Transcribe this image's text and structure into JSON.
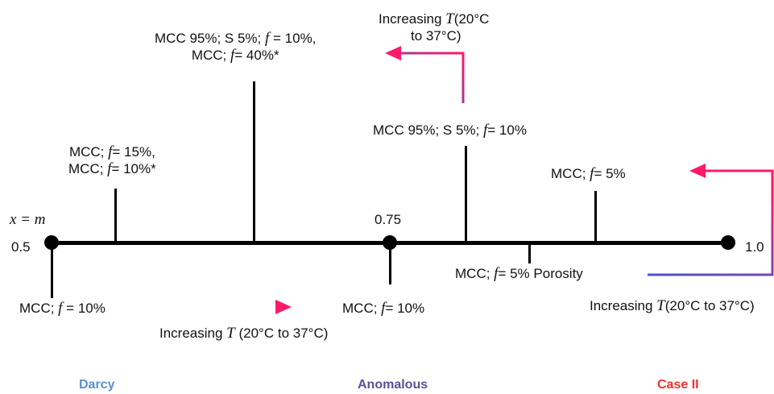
{
  "axis": {
    "var_label": "x = m",
    "start": "0.5",
    "mid": "0.75",
    "end": "1.0"
  },
  "labels": {
    "mcc95_s5_f10_mcc_f40": {
      "line1": "MCC 95%; S 5%; ",
      "f1": "f",
      "after1": " = 10%,",
      "line2a": "MCC; ",
      "f2": "f",
      "after2": "= 40%*"
    },
    "mcc_f15_f10": {
      "line1a": "MCC; ",
      "f1": "f",
      "after1": "= 15%,",
      "line2a": "MCC; ",
      "f2": "f",
      "after2": "= 10%*"
    },
    "mcc95_s5_f10": {
      "a": "MCC 95%; S 5%; ",
      "f": "f",
      "b": "=  10%"
    },
    "mcc_f5_top": {
      "a": "MCC; ",
      "f": "f",
      "b": "=  5%"
    },
    "mcc_f10_left": {
      "a": "MCC; ",
      "f": "f",
      "b": " = 10%"
    },
    "mcc_f10_mid": {
      "a": "MCC; ",
      "f": "f",
      "b": "= 10%"
    },
    "mcc_f5_porosity": {
      "a": "MCC; ",
      "f": "f",
      "b": "= 5% Porosity"
    }
  },
  "arrows": {
    "top": {
      "text1a": "Increasing ",
      "T": "T",
      "text1b": "(20°C",
      "text2": "to 37°C)"
    },
    "bottom": {
      "a": "Increasing  ",
      "T": "T",
      "b": " (20°C to 37°C)"
    },
    "right": {
      "a": "Increasing ",
      "T": "T",
      "b": "(20°C to 37°C)"
    }
  },
  "regions": {
    "darcy": "Darcy",
    "anomalous": "Anomalous",
    "case2": "Case II"
  },
  "colors": {
    "darcy": "#5b8fd0",
    "anomalous": "#5a4f9c",
    "case2": "#f0322e",
    "arrow_start": "#4a55c8",
    "arrow_end": "#ff1a6a"
  }
}
